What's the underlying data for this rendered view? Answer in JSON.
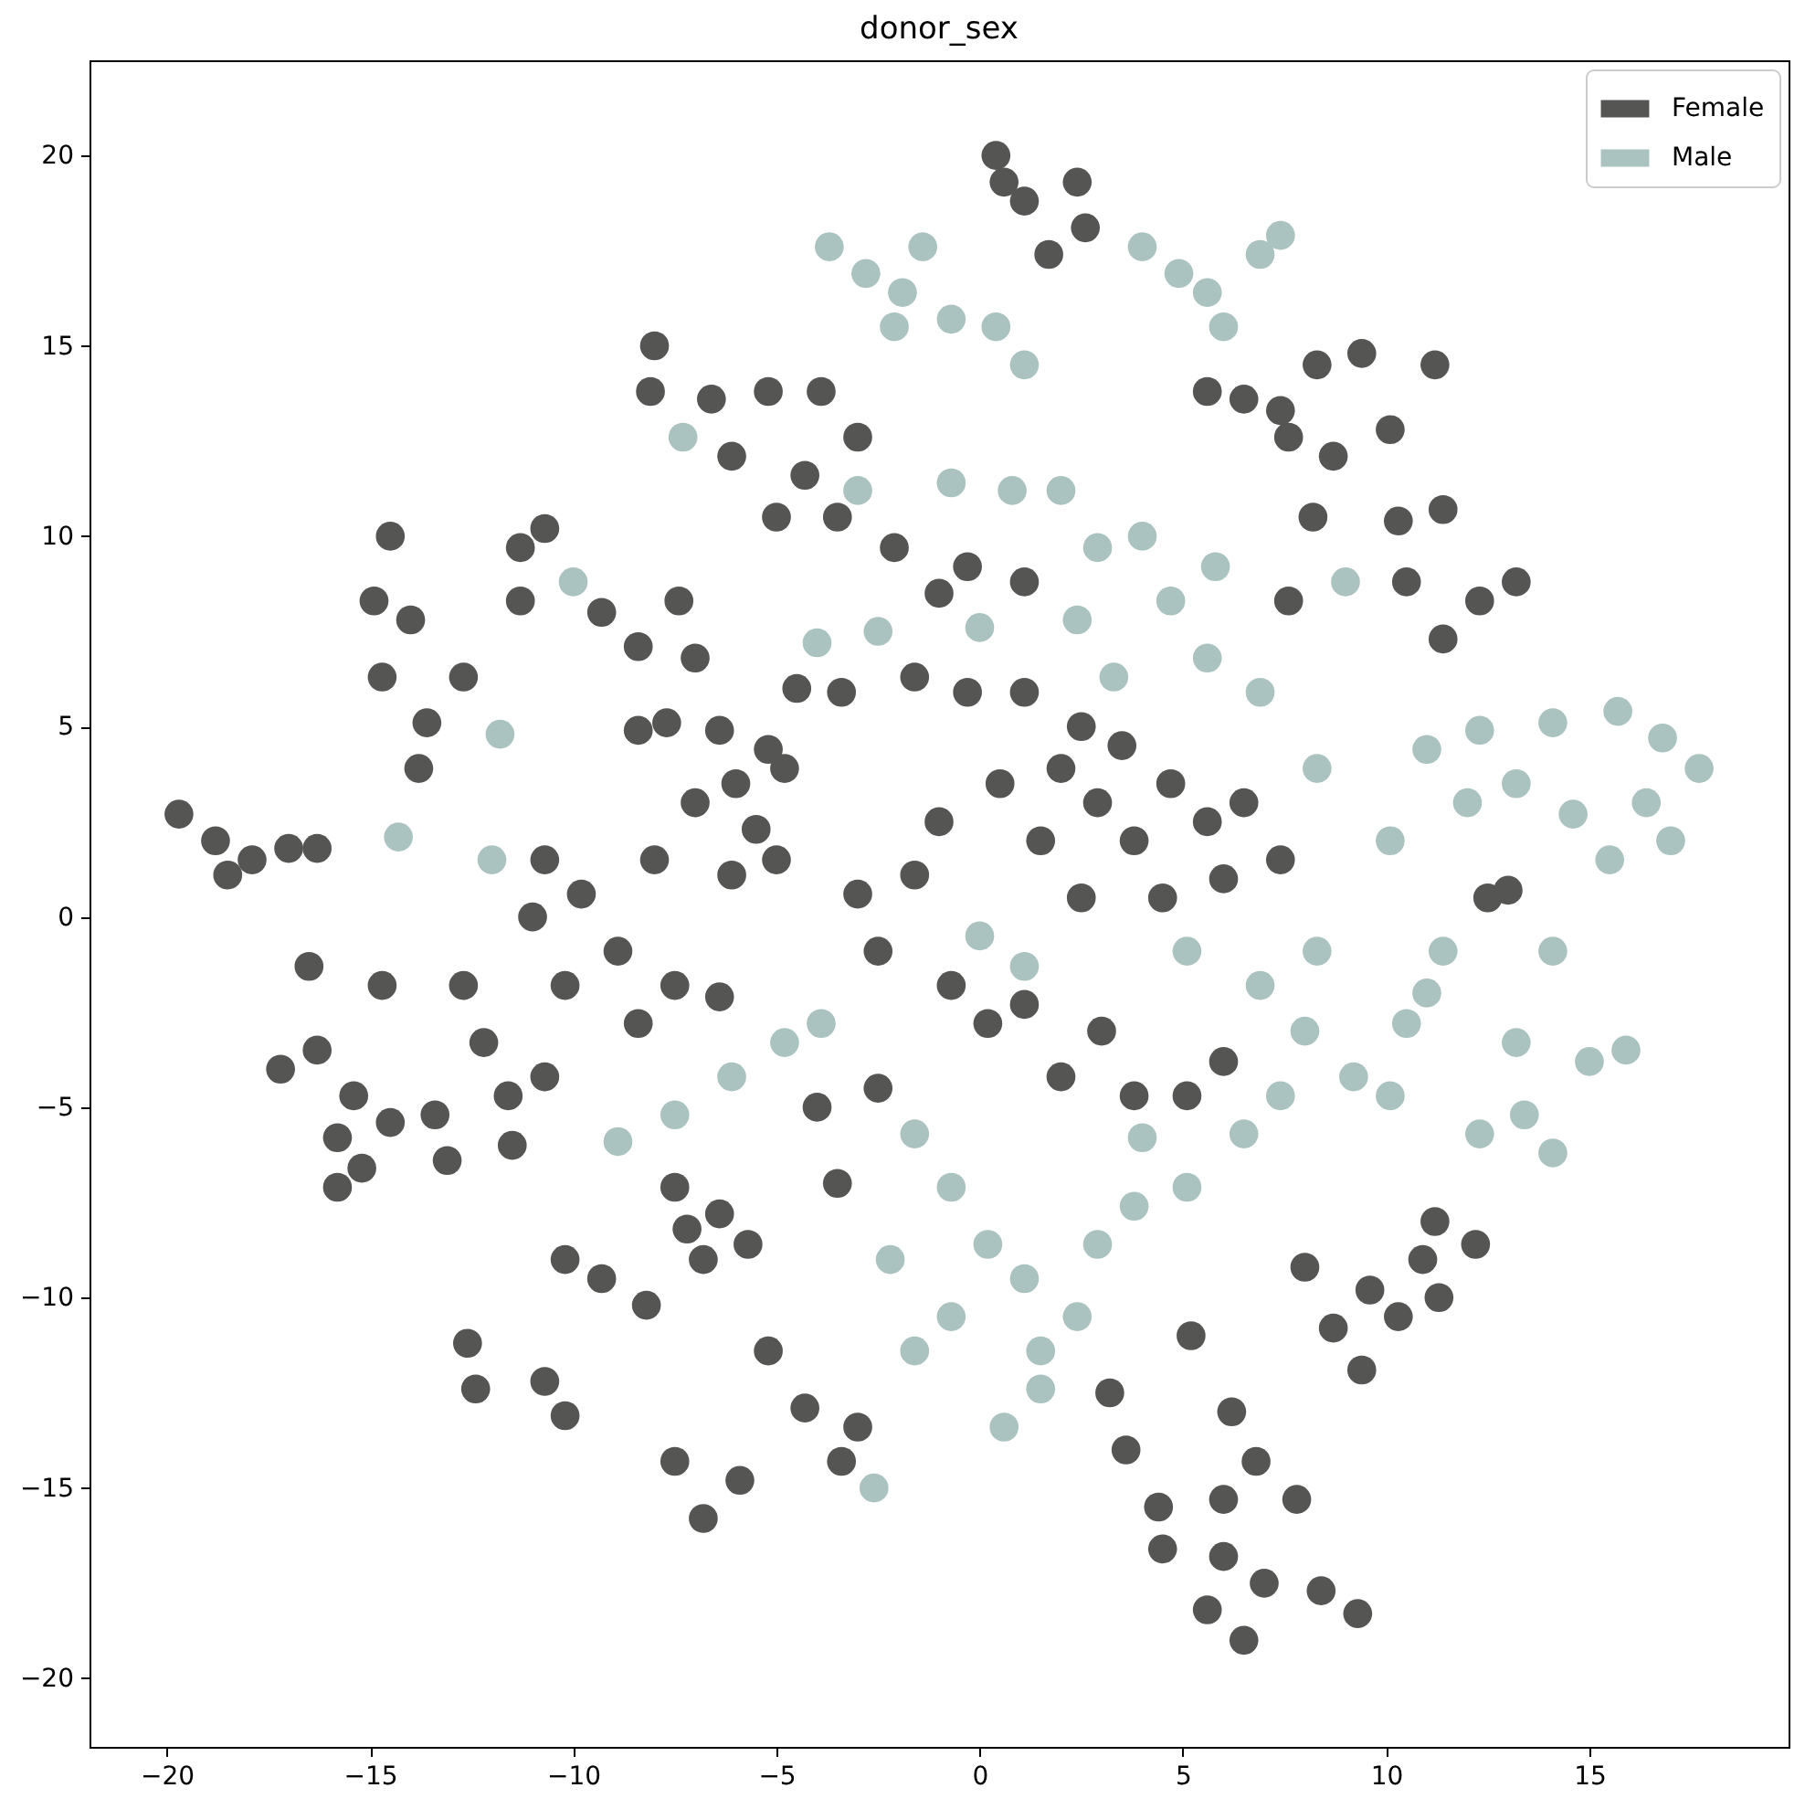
{
  "chart_data": {
    "type": "scatter",
    "title": "donor_sex",
    "marker": "circle",
    "legend": "top right",
    "xlim": [
      -21.9,
      19.9
    ],
    "ylim": [
      -21.8,
      22.5
    ],
    "xticks": [
      -20,
      -15,
      -10,
      -5,
      0,
      5,
      10,
      15
    ],
    "yticks": [
      -20,
      -15,
      -10,
      -5,
      0,
      5,
      10,
      15,
      20
    ],
    "series": [
      {
        "name": "Female",
        "color": "#555553",
        "x": [
          0.4,
          0.6,
          1.1,
          1.7,
          2.4,
          2.6,
          -19.7,
          -18.8,
          -18.5,
          -17.9,
          -17.0,
          -16.3,
          -17.2,
          -16.3,
          -15.8,
          -15.2,
          -14.5,
          -15.4,
          -14.7,
          -16.5,
          -15.8,
          -14.5,
          -14.9,
          -14.0,
          -14.7,
          -13.6,
          -13.8,
          -11.3,
          -10.7,
          -9.3,
          -8.4,
          -11.3,
          -7.4,
          -7.0,
          -8.0,
          -8.1,
          -12.7,
          -8.4,
          -7.7,
          -6.4,
          -5.2,
          -4.8,
          -7.0,
          -5.5,
          -6.1,
          -8.0,
          -6.0,
          -5.0,
          -10.7,
          -9.8,
          -8.9,
          -7.5,
          -6.4,
          -10.2,
          -8.4,
          -11.0,
          -12.7,
          -12.2,
          -11.6,
          -13.4,
          -10.7,
          -13.1,
          -11.5,
          -7.5,
          -6.4,
          -5.7,
          -6.8,
          -10.2,
          -9.3,
          -8.2,
          -7.2,
          -12.6,
          -12.4,
          -10.7,
          -10.2,
          -7.5,
          -6.8,
          -5.9,
          -5.2,
          -4.3,
          -3.4,
          -3.0,
          -3.0,
          -2.5,
          -1.6,
          -0.7,
          0.2,
          1.1,
          2.0,
          2.9,
          3.8,
          4.7,
          5.6,
          6.5,
          7.4,
          1.1,
          2.5,
          3.5,
          1.5,
          0.5,
          -1.0,
          2.5,
          4.5,
          6.0,
          -3.4,
          -1.6,
          -0.3,
          -4.5,
          -0.3,
          -2.1,
          1.1,
          -1.0,
          -6.6,
          -5.2,
          -3.9,
          -6.1,
          -4.3,
          -3.0,
          -5.0,
          -3.5,
          2.0,
          3.8,
          5.1,
          6.0,
          3.0,
          3.2,
          3.6,
          4.4,
          4.5,
          6.2,
          6.8,
          7.8,
          6.0,
          5.2,
          5.6,
          6.5,
          7.0,
          8.4,
          9.3,
          6.0,
          8.0,
          8.7,
          9.4,
          10.3,
          10.9,
          11.2,
          12.2,
          11.3,
          9.6,
          12.5,
          13.0,
          8.3,
          8.7,
          9.4,
          11.2,
          10.1,
          7.6,
          8.2,
          5.6,
          7.4,
          7.6,
          6.5,
          10.3,
          11.4,
          10.5,
          12.3,
          13.2,
          11.4,
          -4.0,
          -2.5,
          -3.5
        ],
        "values": [
          20.0,
          19.3,
          18.8,
          17.4,
          19.3,
          18.1,
          2.7,
          2.0,
          1.1,
          1.5,
          1.8,
          1.8,
          -4.0,
          -3.5,
          -7.1,
          -6.6,
          -5.4,
          -4.7,
          -1.8,
          -1.3,
          -5.8,
          10.0,
          8.3,
          7.8,
          6.3,
          5.1,
          3.9,
          9.7,
          10.2,
          8.0,
          7.1,
          8.3,
          8.3,
          6.8,
          15.0,
          13.8,
          6.3,
          4.9,
          5.1,
          4.9,
          4.4,
          3.9,
          3.0,
          2.3,
          1.1,
          1.5,
          3.5,
          1.5,
          1.5,
          0.6,
          -0.9,
          -1.8,
          -2.1,
          -1.8,
          -2.8,
          0.0,
          -1.8,
          -3.3,
          -4.7,
          -5.2,
          -4.2,
          -6.4,
          -6.0,
          -7.1,
          -7.8,
          -8.6,
          -9.0,
          -9.0,
          -9.5,
          -10.2,
          -8.2,
          -11.2,
          -12.4,
          -12.2,
          -13.1,
          -14.3,
          -15.8,
          -14.8,
          -11.4,
          -12.9,
          -14.3,
          -13.4,
          0.6,
          -0.9,
          1.1,
          -1.8,
          -2.8,
          -2.3,
          3.9,
          3.0,
          2.0,
          3.5,
          2.5,
          3.0,
          1.5,
          5.9,
          5.0,
          4.5,
          2.0,
          3.5,
          2.5,
          0.5,
          0.5,
          1.0,
          5.9,
          6.3,
          5.9,
          6.0,
          9.2,
          9.7,
          8.8,
          8.5,
          13.6,
          13.8,
          13.8,
          12.1,
          11.6,
          12.6,
          10.5,
          10.5,
          -4.2,
          -4.7,
          -4.7,
          -3.8,
          -3.0,
          -12.5,
          -14.0,
          -15.5,
          -16.6,
          -13.0,
          -14.3,
          -15.3,
          -15.3,
          -11.0,
          -18.2,
          -19.0,
          -17.5,
          -17.7,
          -18.3,
          -16.8,
          -9.2,
          -10.8,
          -11.9,
          -10.5,
          -9.0,
          -8.0,
          -8.6,
          -10.0,
          -9.8,
          0.5,
          0.7,
          14.5,
          12.1,
          14.8,
          14.5,
          12.8,
          8.3,
          10.5,
          13.8,
          13.3,
          12.6,
          13.6,
          10.4,
          10.7,
          8.8,
          8.3,
          8.8,
          7.3,
          -5.0,
          -4.5,
          -7.0
        ]
      },
      {
        "name": "Male",
        "color": "#abc3c0",
        "x": [
          -3.7,
          -2.8,
          -1.9,
          -0.7,
          0.4,
          1.1,
          -2.1,
          -1.4,
          4.0,
          4.9,
          5.6,
          6.9,
          7.4,
          6.0,
          -3.0,
          -0.7,
          0.8,
          -2.5,
          -4.0,
          0.0,
          2.4,
          3.3,
          4.7,
          5.6,
          2.9,
          2.0,
          6.9,
          8.3,
          5.8,
          4.0,
          11.0,
          12.3,
          14.1,
          15.7,
          16.8,
          17.7,
          16.4,
          14.6,
          13.2,
          15.5,
          10.1,
          17.0,
          12.0,
          13.2,
          15.0,
          15.9,
          13.4,
          14.1,
          12.3,
          14.1,
          -1.6,
          -0.7,
          0.2,
          1.1,
          -0.7,
          -1.6,
          1.5,
          2.4,
          2.9,
          3.8,
          5.1,
          6.5,
          7.4,
          9.2,
          10.1,
          8.3,
          6.9,
          5.1,
          1.1,
          0.0,
          1.5,
          0.6,
          -2.6,
          -2.2,
          4.0,
          8.0,
          11.0,
          -8.9,
          -7.5,
          -6.1,
          -4.8,
          -3.9,
          -10.0,
          -11.8,
          -14.3,
          -12.0,
          -7.3,
          11.4,
          9.0,
          10.5
        ],
        "values": [
          17.6,
          16.9,
          16.4,
          15.7,
          15.5,
          14.5,
          15.5,
          17.6,
          17.6,
          16.9,
          16.4,
          17.4,
          17.9,
          15.5,
          11.2,
          11.4,
          11.2,
          7.5,
          7.2,
          7.6,
          7.8,
          6.3,
          8.3,
          6.8,
          9.7,
          11.2,
          5.9,
          3.9,
          9.2,
          10.0,
          4.4,
          4.9,
          5.1,
          5.4,
          4.7,
          3.9,
          3.0,
          2.7,
          3.5,
          1.5,
          2.0,
          2.0,
          3.0,
          -3.3,
          -3.8,
          -3.5,
          -5.2,
          -6.2,
          -5.7,
          -0.9,
          -5.7,
          -7.1,
          -8.6,
          -9.5,
          -10.5,
          -11.4,
          -11.4,
          -10.5,
          -8.6,
          -7.6,
          -7.1,
          -5.7,
          -4.7,
          -4.2,
          -4.7,
          -0.9,
          -1.8,
          -0.9,
          -1.3,
          -0.5,
          -12.4,
          -13.4,
          -15.0,
          -9.0,
          -5.8,
          -3.0,
          -2.0,
          -5.9,
          -5.2,
          -4.2,
          -3.3,
          -2.8,
          8.8,
          4.8,
          2.1,
          1.5,
          12.6,
          -0.9,
          8.8,
          -2.8
        ]
      }
    ]
  }
}
